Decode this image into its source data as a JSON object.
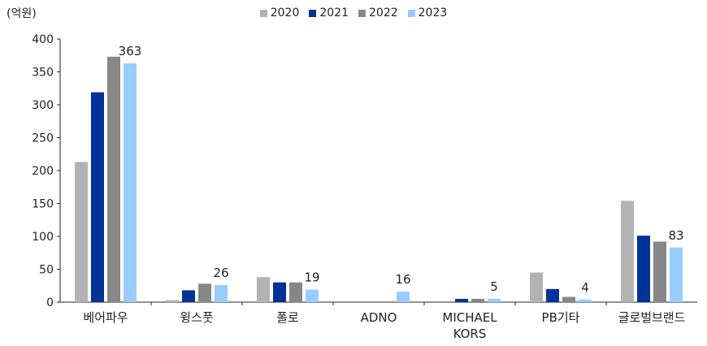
{
  "unit_label": "(억원)",
  "colors": {
    "2020": "#b3b3b3",
    "2021": "#003399",
    "2022": "#878787",
    "2023": "#99ccff"
  },
  "chart_data": {
    "type": "bar",
    "title": "",
    "xlabel": "",
    "ylabel": "(억원)",
    "ylim": [
      0,
      400
    ],
    "yticks": [
      0,
      50,
      100,
      150,
      200,
      250,
      300,
      350,
      400
    ],
    "grid": false,
    "legend_position": "top-center",
    "categories": [
      "베어파우",
      "윙스풋",
      "폴로",
      "ADNO",
      "MICHAEL KORS",
      "PB기타",
      "글로벌브랜드"
    ],
    "series": [
      {
        "name": "2020",
        "values": [
          213,
          3,
          38,
          0,
          0,
          45,
          154
        ]
      },
      {
        "name": "2021",
        "values": [
          319,
          18,
          30,
          0,
          5,
          20,
          101
        ]
      },
      {
        "name": "2022",
        "values": [
          373,
          28,
          30,
          0,
          5,
          8,
          92
        ]
      },
      {
        "name": "2023",
        "values": [
          363,
          26,
          19,
          16,
          5,
          4,
          83
        ]
      }
    ],
    "data_labels": [
      "363",
      "26",
      "19",
      "16",
      "5",
      "4",
      "83"
    ]
  }
}
